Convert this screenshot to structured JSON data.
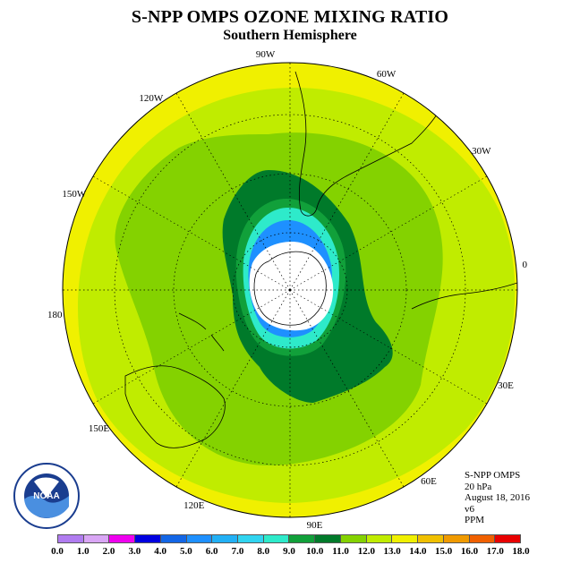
{
  "title": "S-NPP OMPS OZONE MIXING RATIO",
  "subtitle": "Southern Hemisphere",
  "longitude_labels": [
    "90W",
    "60W",
    "30W",
    "0",
    "30E",
    "60E",
    "90E",
    "120E",
    "150E",
    "180",
    "150W",
    "120W"
  ],
  "info": {
    "instrument": "S-NPP OMPS",
    "level": "20 hPa",
    "date": "August 18, 2016",
    "version": "v6",
    "units": "PPM"
  },
  "logo_text": "NOAA",
  "colorbar": {
    "ticks": [
      "0.0",
      "1.0",
      "2.0",
      "3.0",
      "4.0",
      "5.0",
      "6.0",
      "7.0",
      "8.0",
      "9.0",
      "10.0",
      "11.0",
      "12.0",
      "13.0",
      "14.0",
      "15.0",
      "16.0",
      "17.0",
      "18.0"
    ],
    "colors": [
      "#b07cf0",
      "#d9a6f5",
      "#ef00ef",
      "#0000e0",
      "#1366e6",
      "#1e90ff",
      "#22b0f5",
      "#30d4f0",
      "#2eeaca",
      "#11a03a",
      "#007a2a",
      "#84d200",
      "#c0ec00",
      "#f0f000",
      "#f0c000",
      "#f09a00",
      "#f06000",
      "#e80000",
      "#8b5a2b"
    ]
  },
  "colors": {
    "outer_band": "#f0f000",
    "mid_band": "#c0ec00",
    "inner_band": "#84d200",
    "dark_green": "#007a2a",
    "green": "#11a03a",
    "cyan": "#2eeaca",
    "light_blue": "#30d4f0",
    "blue": "#1e90ff",
    "pole": "#ffffff"
  }
}
